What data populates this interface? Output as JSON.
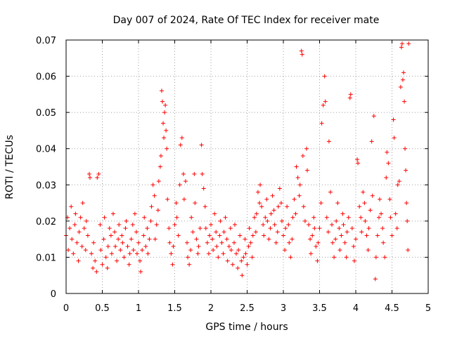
{
  "chart_data": {
    "type": "scatter",
    "title": "Day 007 of 2024, Rate Of TEC Index for receiver mate",
    "xlabel": "GPS time / hours",
    "ylabel": "ROTI / TECUs",
    "xlim": [
      0,
      5
    ],
    "ylim": [
      0,
      0.07
    ],
    "x_ticks": [
      "0",
      "0.5",
      "1",
      "1.5",
      "2",
      "2.5",
      "3",
      "3.5",
      "4",
      "4.5",
      "5"
    ],
    "x_tick_values": [
      0,
      0.5,
      1,
      1.5,
      2,
      2.5,
      3,
      3.5,
      4,
      4.5,
      5
    ],
    "y_ticks": [
      "0",
      "0.01",
      "0.02",
      "0.03",
      "0.04",
      "0.05",
      "0.06",
      "0.07"
    ],
    "y_tick_values": [
      0,
      0.01,
      0.02,
      0.03,
      0.04,
      0.05,
      0.06,
      0.07
    ],
    "grid": true,
    "marker": "+",
    "color": "#ff0000",
    "series": [
      {
        "name": "ROTI",
        "points": [
          [
            0.0,
            0.016
          ],
          [
            0.02,
            0.021
          ],
          [
            0.03,
            0.012
          ],
          [
            0.05,
            0.018
          ],
          [
            0.07,
            0.024
          ],
          [
            0.08,
            0.015
          ],
          [
            0.1,
            0.011
          ],
          [
            0.12,
            0.019
          ],
          [
            0.13,
            0.022
          ],
          [
            0.15,
            0.014
          ],
          [
            0.17,
            0.009
          ],
          [
            0.18,
            0.017
          ],
          [
            0.2,
            0.021
          ],
          [
            0.22,
            0.013
          ],
          [
            0.23,
            0.025
          ],
          [
            0.25,
            0.018
          ],
          [
            0.27,
            0.012
          ],
          [
            0.28,
            0.02
          ],
          [
            0.3,
            0.016
          ],
          [
            0.32,
            0.033
          ],
          [
            0.33,
            0.032
          ],
          [
            0.35,
            0.011
          ],
          [
            0.37,
            0.007
          ],
          [
            0.38,
            0.014
          ],
          [
            0.4,
            0.009
          ],
          [
            0.42,
            0.006
          ],
          [
            0.43,
            0.032
          ],
          [
            0.45,
            0.033
          ],
          [
            0.47,
            0.019
          ],
          [
            0.48,
            0.012
          ],
          [
            0.5,
            0.008
          ],
          [
            0.52,
            0.015
          ],
          [
            0.53,
            0.021
          ],
          [
            0.55,
            0.01
          ],
          [
            0.57,
            0.007
          ],
          [
            0.58,
            0.013
          ],
          [
            0.6,
            0.018
          ],
          [
            0.62,
            0.016
          ],
          [
            0.63,
            0.011
          ],
          [
            0.65,
            0.022
          ],
          [
            0.67,
            0.017
          ],
          [
            0.68,
            0.013
          ],
          [
            0.7,
            0.009
          ],
          [
            0.72,
            0.015
          ],
          [
            0.73,
            0.019
          ],
          [
            0.75,
            0.012
          ],
          [
            0.77,
            0.016
          ],
          [
            0.78,
            0.014
          ],
          [
            0.8,
            0.01
          ],
          [
            0.82,
            0.018
          ],
          [
            0.83,
            0.02
          ],
          [
            0.85,
            0.013
          ],
          [
            0.87,
            0.008
          ],
          [
            0.88,
            0.011
          ],
          [
            0.9,
            0.015
          ],
          [
            0.92,
            0.019
          ],
          [
            0.93,
            0.012
          ],
          [
            0.95,
            0.022
          ],
          [
            0.97,
            0.017
          ],
          [
            0.98,
            0.011
          ],
          [
            1.0,
            0.014
          ],
          [
            1.02,
            0.009
          ],
          [
            1.03,
            0.006
          ],
          [
            1.05,
            0.012
          ],
          [
            1.07,
            0.016
          ],
          [
            1.08,
            0.021
          ],
          [
            1.1,
            0.013
          ],
          [
            1.12,
            0.018
          ],
          [
            1.13,
            0.011
          ],
          [
            1.15,
            0.015
          ],
          [
            1.17,
            0.02
          ],
          [
            1.18,
            0.024
          ],
          [
            1.2,
            0.03
          ],
          [
            1.22,
            0.027
          ],
          [
            1.23,
            0.015
          ],
          [
            1.25,
            0.019
          ],
          [
            1.27,
            0.023
          ],
          [
            1.28,
            0.031
          ],
          [
            1.3,
            0.035
          ],
          [
            1.31,
            0.038
          ],
          [
            1.32,
            0.056
          ],
          [
            1.33,
            0.053
          ],
          [
            1.34,
            0.047
          ],
          [
            1.35,
            0.043
          ],
          [
            1.36,
            0.05
          ],
          [
            1.37,
            0.052
          ],
          [
            1.38,
            0.045
          ],
          [
            1.39,
            0.04
          ],
          [
            1.4,
            0.026
          ],
          [
            1.42,
            0.018
          ],
          [
            1.43,
            0.014
          ],
          [
            1.45,
            0.011
          ],
          [
            1.47,
            0.008
          ],
          [
            1.48,
            0.013
          ],
          [
            1.5,
            0.019
          ],
          [
            1.52,
            0.025
          ],
          [
            1.53,
            0.021
          ],
          [
            1.55,
            0.016
          ],
          [
            1.57,
            0.03
          ],
          [
            1.58,
            0.041
          ],
          [
            1.6,
            0.043
          ],
          [
            1.62,
            0.033
          ],
          [
            1.63,
            0.026
          ],
          [
            1.65,
            0.031
          ],
          [
            1.67,
            0.014
          ],
          [
            1.68,
            0.01
          ],
          [
            1.7,
            0.008
          ],
          [
            1.72,
            0.012
          ],
          [
            1.73,
            0.021
          ],
          [
            1.75,
            0.017
          ],
          [
            1.77,
            0.033
          ],
          [
            1.78,
            0.025
          ],
          [
            1.8,
            0.015
          ],
          [
            1.82,
            0.011
          ],
          [
            1.83,
            0.013
          ],
          [
            1.85,
            0.018
          ],
          [
            1.87,
            0.041
          ],
          [
            1.88,
            0.033
          ],
          [
            1.9,
            0.029
          ],
          [
            1.92,
            0.024
          ],
          [
            1.93,
            0.018
          ],
          [
            1.95,
            0.014
          ],
          [
            1.97,
            0.011
          ],
          [
            1.98,
            0.016
          ],
          [
            2.0,
            0.019
          ],
          [
            2.02,
            0.015
          ],
          [
            2.03,
            0.012
          ],
          [
            2.05,
            0.022
          ],
          [
            2.07,
            0.017
          ],
          [
            2.08,
            0.013
          ],
          [
            2.1,
            0.01
          ],
          [
            2.12,
            0.016
          ],
          [
            2.13,
            0.02
          ],
          [
            2.15,
            0.014
          ],
          [
            2.17,
            0.011
          ],
          [
            2.18,
            0.017
          ],
          [
            2.2,
            0.021
          ],
          [
            2.22,
            0.015
          ],
          [
            2.23,
            0.009
          ],
          [
            2.25,
            0.013
          ],
          [
            2.27,
            0.018
          ],
          [
            2.28,
            0.012
          ],
          [
            2.3,
            0.008
          ],
          [
            2.32,
            0.014
          ],
          [
            2.33,
            0.019
          ],
          [
            2.35,
            0.011
          ],
          [
            2.37,
            0.007
          ],
          [
            2.38,
            0.012
          ],
          [
            2.4,
            0.016
          ],
          [
            2.42,
            0.009
          ],
          [
            2.43,
            0.005
          ],
          [
            2.45,
            0.01
          ],
          [
            2.47,
            0.015
          ],
          [
            2.48,
            0.011
          ],
          [
            2.5,
            0.008
          ],
          [
            2.52,
            0.013
          ],
          [
            2.53,
            0.018
          ],
          [
            2.55,
            0.014
          ],
          [
            2.57,
            0.01
          ],
          [
            2.58,
            0.016
          ],
          [
            2.6,
            0.021
          ],
          [
            2.62,
            0.017
          ],
          [
            2.63,
            0.022
          ],
          [
            2.65,
            0.028
          ],
          [
            2.67,
            0.025
          ],
          [
            2.68,
            0.03
          ],
          [
            2.7,
            0.024
          ],
          [
            2.72,
            0.019
          ],
          [
            2.73,
            0.016
          ],
          [
            2.75,
            0.021
          ],
          [
            2.77,
            0.026
          ],
          [
            2.78,
            0.02
          ],
          [
            2.8,
            0.015
          ],
          [
            2.82,
            0.018
          ],
          [
            2.83,
            0.022
          ],
          [
            2.85,
            0.027
          ],
          [
            2.87,
            0.023
          ],
          [
            2.88,
            0.019
          ],
          [
            2.9,
            0.014
          ],
          [
            2.92,
            0.017
          ],
          [
            2.93,
            0.024
          ],
          [
            2.95,
            0.029
          ],
          [
            2.97,
            0.025
          ],
          [
            2.98,
            0.02
          ],
          [
            3.0,
            0.016
          ],
          [
            3.02,
            0.012
          ],
          [
            3.03,
            0.018
          ],
          [
            3.05,
            0.024
          ],
          [
            3.07,
            0.019
          ],
          [
            3.08,
            0.014
          ],
          [
            3.1,
            0.01
          ],
          [
            3.12,
            0.015
          ],
          [
            3.13,
            0.021
          ],
          [
            3.15,
            0.026
          ],
          [
            3.17,
            0.022
          ],
          [
            3.18,
            0.035
          ],
          [
            3.2,
            0.032
          ],
          [
            3.22,
            0.027
          ],
          [
            3.23,
            0.03
          ],
          [
            3.25,
            0.067
          ],
          [
            3.26,
            0.066
          ],
          [
            3.27,
            0.038
          ],
          [
            3.28,
            0.024
          ],
          [
            3.3,
            0.02
          ],
          [
            3.32,
            0.04
          ],
          [
            3.33,
            0.034
          ],
          [
            3.35,
            0.019
          ],
          [
            3.37,
            0.015
          ],
          [
            3.38,
            0.011
          ],
          [
            3.4,
            0.016
          ],
          [
            3.42,
            0.021
          ],
          [
            3.43,
            0.018
          ],
          [
            3.45,
            0.013
          ],
          [
            3.47,
            0.009
          ],
          [
            3.48,
            0.014
          ],
          [
            3.5,
            0.018
          ],
          [
            3.52,
            0.025
          ],
          [
            3.53,
            0.047
          ],
          [
            3.55,
            0.052
          ],
          [
            3.57,
            0.06
          ],
          [
            3.58,
            0.053
          ],
          [
            3.6,
            0.021
          ],
          [
            3.62,
            0.017
          ],
          [
            3.63,
            0.042
          ],
          [
            3.65,
            0.028
          ],
          [
            3.67,
            0.019
          ],
          [
            3.68,
            0.014
          ],
          [
            3.7,
            0.01
          ],
          [
            3.72,
            0.015
          ],
          [
            3.73,
            0.02
          ],
          [
            3.75,
            0.025
          ],
          [
            3.77,
            0.018
          ],
          [
            3.78,
            0.012
          ],
          [
            3.8,
            0.016
          ],
          [
            3.82,
            0.022
          ],
          [
            3.83,
            0.019
          ],
          [
            3.85,
            0.014
          ],
          [
            3.87,
            0.01
          ],
          [
            3.88,
            0.017
          ],
          [
            3.9,
            0.021
          ],
          [
            3.92,
            0.054
          ],
          [
            3.93,
            0.055
          ],
          [
            3.95,
            0.018
          ],
          [
            3.97,
            0.013
          ],
          [
            3.98,
            0.009
          ],
          [
            4.0,
            0.015
          ],
          [
            4.02,
            0.037
          ],
          [
            4.03,
            0.036
          ],
          [
            4.05,
            0.024
          ],
          [
            4.07,
            0.021
          ],
          [
            4.08,
            0.017
          ],
          [
            4.1,
            0.028
          ],
          [
            4.12,
            0.025
          ],
          [
            4.13,
            0.02
          ],
          [
            4.15,
            0.016
          ],
          [
            4.17,
            0.012
          ],
          [
            4.18,
            0.018
          ],
          [
            4.2,
            0.023
          ],
          [
            4.22,
            0.042
          ],
          [
            4.23,
            0.027
          ],
          [
            4.25,
            0.049
          ],
          [
            4.27,
            0.004
          ],
          [
            4.28,
            0.01
          ],
          [
            4.3,
            0.016
          ],
          [
            4.32,
            0.021
          ],
          [
            4.33,
            0.026
          ],
          [
            4.35,
            0.022
          ],
          [
            4.37,
            0.018
          ],
          [
            4.38,
            0.014
          ],
          [
            4.4,
            0.01
          ],
          [
            4.42,
            0.032
          ],
          [
            4.43,
            0.039
          ],
          [
            4.45,
            0.036
          ],
          [
            4.47,
            0.026
          ],
          [
            4.48,
            0.021
          ],
          [
            4.5,
            0.016
          ],
          [
            4.52,
            0.048
          ],
          [
            4.53,
            0.043
          ],
          [
            4.55,
            0.022
          ],
          [
            4.57,
            0.018
          ],
          [
            4.58,
            0.03
          ],
          [
            4.6,
            0.031
          ],
          [
            4.62,
            0.057
          ],
          [
            4.63,
            0.068
          ],
          [
            4.64,
            0.069
          ],
          [
            4.65,
            0.059
          ],
          [
            4.66,
            0.061
          ],
          [
            4.67,
            0.053
          ],
          [
            4.68,
            0.04
          ],
          [
            4.69,
            0.034
          ],
          [
            4.7,
            0.025
          ],
          [
            4.71,
            0.02
          ],
          [
            4.72,
            0.012
          ],
          [
            4.73,
            0.069
          ]
        ]
      }
    ]
  }
}
